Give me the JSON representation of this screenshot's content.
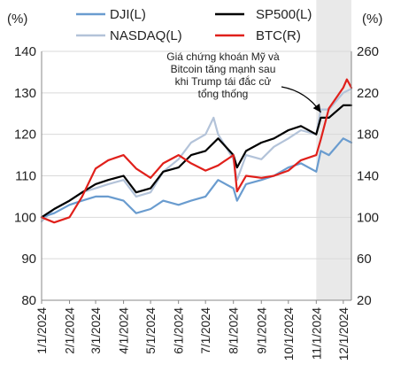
{
  "chart_data": {
    "type": "line",
    "title": "",
    "left_axis_unit": "(%)",
    "right_axis_unit": "(%)",
    "ylim_left": [
      80,
      140
    ],
    "yticks_left": [
      "80",
      "90",
      "100",
      "110",
      "120",
      "130",
      "140"
    ],
    "ylim_right": [
      20,
      260
    ],
    "yticks_right": [
      "20",
      "60",
      "100",
      "140",
      "180",
      "220",
      "260"
    ],
    "x_tick_labels": [
      "1/1/2024",
      "2/1/2024",
      "3/1/2024",
      "4/1/2024",
      "5/1/2024",
      "6/1/2024",
      "7/1/2024",
      "8/1/2024",
      "9/1/2024",
      "10/1/2024",
      "11/1/2024",
      "12/1/2024"
    ],
    "grid": "horizontal",
    "legend_position": "top",
    "highlight_range": [
      "11/1/2024",
      "12/10/2024"
    ],
    "annotation": {
      "text_lines": [
        "Giá chứng khoán Mỹ và",
        "Bitcoin tăng mạnh sau",
        "khi Trump tái đắc cử",
        "tổng thống"
      ],
      "points_to": "11/6/2024"
    },
    "series": [
      {
        "name": "DJI(L)",
        "axis": "left",
        "color": "#6a9ccf",
        "x": [
          "1/1/2024",
          "1/15/2024",
          "2/1/2024",
          "2/15/2024",
          "3/1/2024",
          "3/15/2024",
          "4/1/2024",
          "4/15/2024",
          "5/1/2024",
          "5/15/2024",
          "6/1/2024",
          "6/15/2024",
          "7/1/2024",
          "7/15/2024",
          "8/1/2024",
          "8/5/2024",
          "8/15/2024",
          "9/1/2024",
          "9/15/2024",
          "10/1/2024",
          "10/15/2024",
          "11/1/2024",
          "11/6/2024",
          "11/15/2024",
          "12/1/2024",
          "12/10/2024"
        ],
        "values": [
          100,
          101,
          103,
          104,
          105,
          105,
          104,
          101,
          102,
          104,
          103,
          104,
          105,
          109,
          107,
          104,
          108,
          109,
          110,
          112,
          113,
          111,
          116,
          115,
          119,
          118
        ]
      },
      {
        "name": "SP500(L)",
        "axis": "left",
        "color": "#000000",
        "x": [
          "1/1/2024",
          "1/15/2024",
          "2/1/2024",
          "2/15/2024",
          "3/1/2024",
          "3/15/2024",
          "4/1/2024",
          "4/15/2024",
          "5/1/2024",
          "5/15/2024",
          "6/1/2024",
          "6/15/2024",
          "7/1/2024",
          "7/15/2024",
          "8/1/2024",
          "8/5/2024",
          "8/15/2024",
          "9/1/2024",
          "9/15/2024",
          "10/1/2024",
          "10/15/2024",
          "11/1/2024",
          "11/6/2024",
          "11/15/2024",
          "12/1/2024",
          "12/10/2024"
        ],
        "values": [
          100,
          102,
          104,
          106,
          108,
          109,
          110,
          106,
          107,
          111,
          112,
          115,
          116,
          119,
          115,
          112,
          116,
          118,
          119,
          121,
          122,
          120,
          124,
          124,
          127,
          127
        ]
      },
      {
        "name": "NASDAQ(L)",
        "axis": "left",
        "color": "#b3c3d9",
        "x": [
          "1/1/2024",
          "1/15/2024",
          "2/1/2024",
          "2/15/2024",
          "3/1/2024",
          "3/15/2024",
          "4/1/2024",
          "4/15/2024",
          "5/1/2024",
          "5/15/2024",
          "6/1/2024",
          "6/15/2024",
          "7/1/2024",
          "7/10/2024",
          "7/15/2024",
          "8/1/2024",
          "8/5/2024",
          "8/15/2024",
          "9/1/2024",
          "9/15/2024",
          "10/1/2024",
          "10/15/2024",
          "11/1/2024",
          "11/6/2024",
          "11/15/2024",
          "12/1/2024",
          "12/10/2024"
        ],
        "values": [
          99,
          102,
          104,
          106,
          107,
          108,
          109,
          105,
          106,
          111,
          114,
          118,
          120,
          124,
          120,
          114,
          109,
          115,
          114,
          117,
          119,
          121,
          120,
          126,
          126,
          130,
          131
        ]
      },
      {
        "name": "BTC(R)",
        "axis": "right",
        "color": "#e0201b",
        "x": [
          "1/1/2024",
          "1/15/2024",
          "2/1/2024",
          "2/15/2024",
          "3/1/2024",
          "3/15/2024",
          "4/1/2024",
          "4/15/2024",
          "5/1/2024",
          "5/15/2024",
          "6/1/2024",
          "6/15/2024",
          "7/1/2024",
          "7/15/2024",
          "8/1/2024",
          "8/5/2024",
          "8/15/2024",
          "9/1/2024",
          "9/15/2024",
          "10/1/2024",
          "10/15/2024",
          "11/1/2024",
          "11/6/2024",
          "11/15/2024",
          "12/1/2024",
          "12/5/2024",
          "12/10/2024"
        ],
        "values": [
          100,
          95,
          100,
          120,
          147,
          155,
          160,
          147,
          138,
          152,
          160,
          152,
          145,
          150,
          160,
          125,
          140,
          138,
          140,
          145,
          155,
          160,
          175,
          205,
          225,
          233,
          225
        ]
      }
    ]
  }
}
